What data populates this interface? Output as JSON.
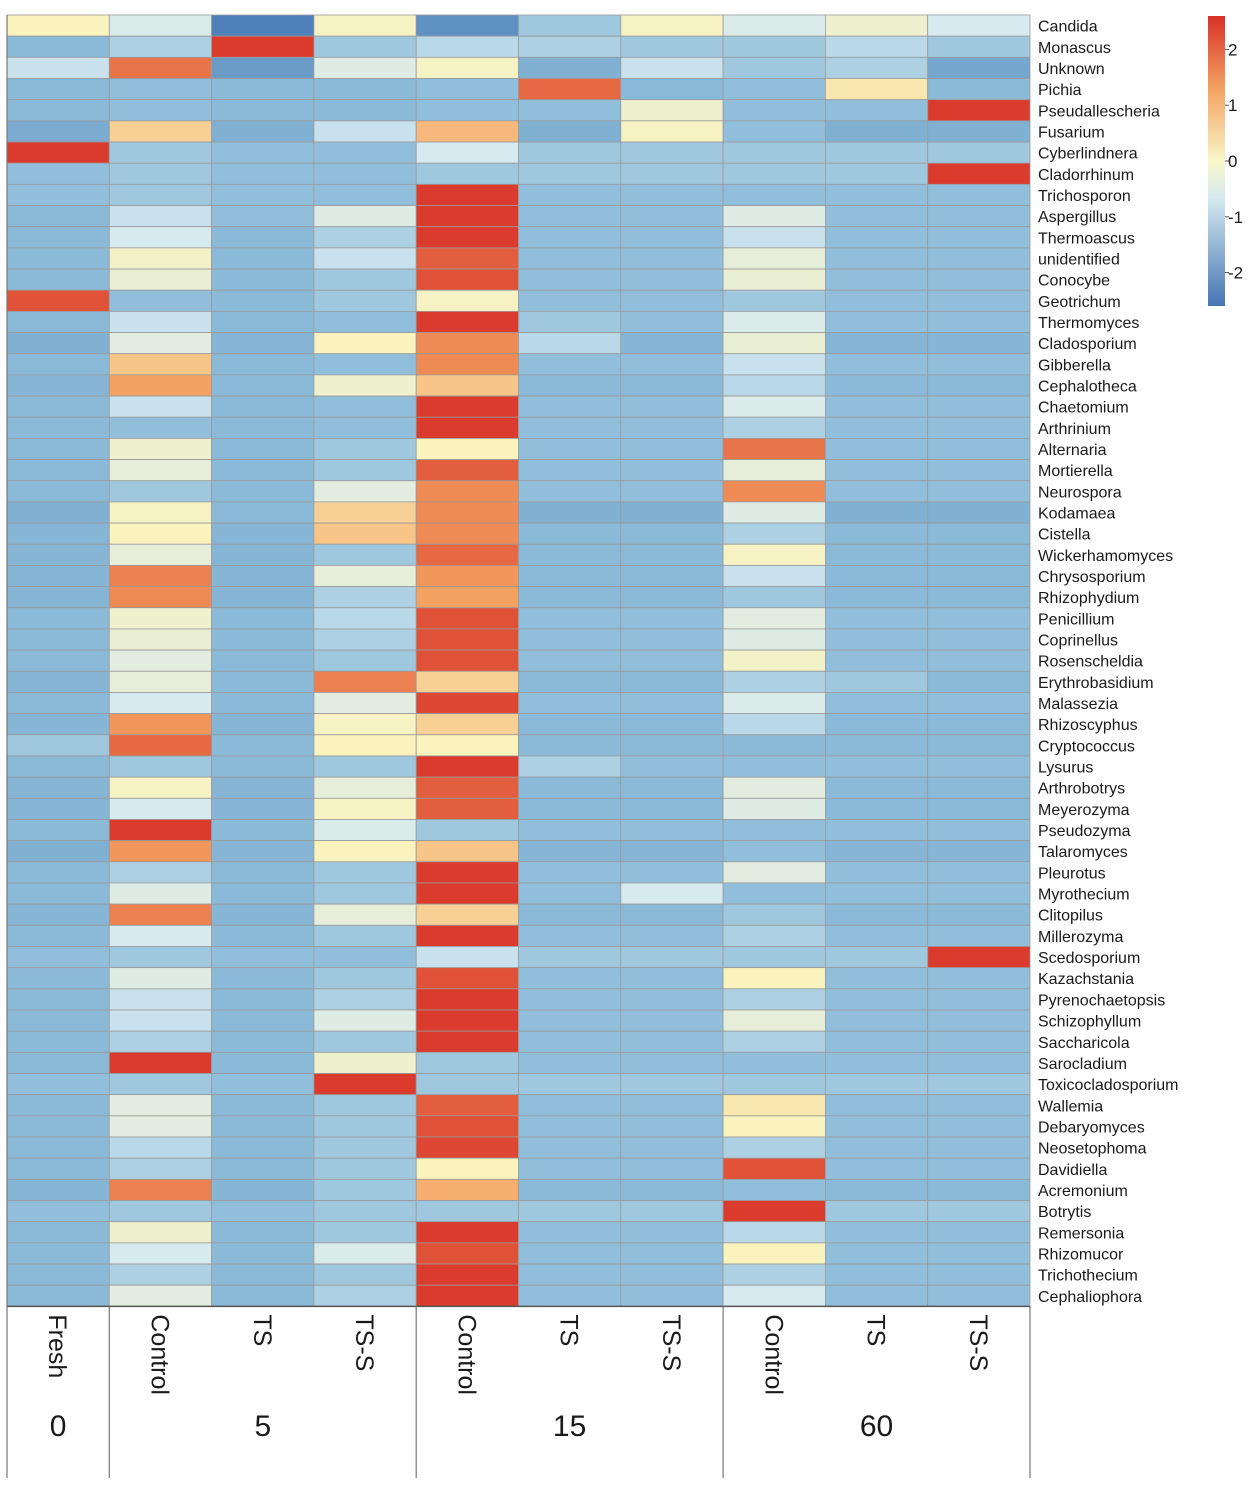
{
  "chart_data": {
    "type": "heatmap",
    "value_scale": {
      "min": -2.6,
      "max": 2.6
    },
    "colorbar": {
      "ticks": [
        2,
        1,
        0,
        -1,
        -2
      ],
      "tick_labels": [
        "2",
        "1",
        "0",
        "-1",
        "-2"
      ]
    },
    "columns": [
      "Fresh",
      "Control",
      "TS",
      "TS-S",
      "Control",
      "TS",
      "TS-S",
      "Control",
      "TS",
      "TS-S"
    ],
    "groups": [
      {
        "label": "0",
        "span": 1
      },
      {
        "label": "5",
        "span": 3
      },
      {
        "label": "15",
        "span": 3
      },
      {
        "label": "60",
        "span": 3
      }
    ],
    "rows": [
      "Candida",
      "Monascus",
      "Unknown",
      "Pichia",
      "Pseudallescheria",
      "Fusarium",
      "Cyberlindnera",
      "Cladorrhinum",
      "Trichosporon",
      "Aspergillus",
      "Thermoascus",
      "unidentified",
      "Conocybe",
      "Geotrichum",
      "Thermomyces",
      "Cladosporium",
      "Gibberella",
      "Cephalotheca",
      "Chaetomium",
      "Arthrinium",
      "Alternaria",
      "Mortierella",
      "Neurospora",
      "Kodamaea",
      "Cistella",
      "Wickerhamomyces",
      "Chrysosporium",
      "Rhizophydium",
      "Penicillium",
      "Coprinellus",
      "Rosenscheldia",
      "Erythrobasidium",
      "Malassezia",
      "Rhizoscyphus",
      "Cryptococcus",
      "Lysurus",
      "Arthrobotrys",
      "Meyerozyma",
      "Pseudozyma",
      "Talaromyces",
      "Pleurotus",
      "Myrothecium",
      "Clitopilus",
      "Millerozyma",
      "Scedosporium",
      "Kazachstania",
      "Pyrenochaetopsis",
      "Schizophyllum",
      "Saccharicola",
      "Sarocladium",
      "Toxicocladosporium",
      "Wallemia",
      "Debaryomyces",
      "Neosetophoma",
      "Davidiella",
      "Acremonium",
      "Botrytis",
      "Remersonia",
      "Rhizomucor",
      "Trichothecium",
      "Cephaliophora"
    ],
    "values": [
      [
        0.9,
        0.1,
        -2.2,
        0.8,
        -1.6,
        -0.4,
        0.8,
        0.1,
        0.6,
        0.0
      ],
      [
        -0.6,
        -0.3,
        2.5,
        -0.4,
        -0.2,
        -0.3,
        -0.4,
        -0.4,
        -0.2,
        -0.4
      ],
      [
        -0.1,
        2.0,
        -1.2,
        0.2,
        0.8,
        -0.8,
        -0.1,
        -0.4,
        -0.3,
        -1.0
      ],
      [
        -0.6,
        -0.5,
        -0.6,
        -0.6,
        -0.5,
        2.1,
        -0.6,
        -0.5,
        1.0,
        -0.6
      ],
      [
        -0.6,
        -0.5,
        -0.6,
        -0.6,
        -0.5,
        -0.5,
        0.6,
        -0.5,
        -0.5,
        2.5
      ],
      [
        -0.9,
        1.2,
        -0.8,
        -0.1,
        1.4,
        -0.8,
        0.8,
        -0.5,
        -0.8,
        -0.8
      ],
      [
        2.5,
        -0.4,
        -0.5,
        -0.5,
        0.0,
        -0.4,
        -0.4,
        -0.4,
        -0.4,
        -0.4
      ],
      [
        -0.5,
        -0.4,
        -0.5,
        -0.5,
        -0.4,
        -0.4,
        -0.4,
        -0.4,
        -0.4,
        2.5
      ],
      [
        -0.5,
        -0.4,
        -0.5,
        -0.5,
        2.5,
        -0.5,
        -0.5,
        -0.5,
        -0.5,
        -0.5
      ],
      [
        -0.6,
        -0.1,
        -0.5,
        0.2,
        2.5,
        -0.5,
        -0.5,
        0.2,
        -0.5,
        -0.5
      ],
      [
        -0.6,
        0.0,
        -0.6,
        -0.3,
        2.5,
        -0.5,
        -0.5,
        -0.1,
        -0.5,
        -0.5
      ],
      [
        -0.6,
        0.7,
        -0.6,
        -0.1,
        2.2,
        -0.5,
        -0.5,
        0.4,
        -0.5,
        -0.5
      ],
      [
        -0.6,
        0.5,
        -0.6,
        -0.4,
        2.3,
        -0.5,
        -0.5,
        0.5,
        -0.5,
        -0.5
      ],
      [
        2.3,
        -0.5,
        -0.6,
        -0.4,
        0.8,
        -0.5,
        -0.5,
        -0.4,
        -0.5,
        -0.5
      ],
      [
        -0.6,
        -0.1,
        -0.6,
        -0.5,
        2.5,
        -0.4,
        -0.5,
        0.1,
        -0.5,
        -0.5
      ],
      [
        -0.8,
        0.3,
        -0.7,
        0.9,
        1.8,
        -0.2,
        -0.7,
        0.5,
        -0.7,
        -0.7
      ],
      [
        -0.6,
        1.3,
        -0.6,
        -0.5,
        1.8,
        -0.5,
        -0.5,
        -0.1,
        -0.5,
        -0.5
      ],
      [
        -0.7,
        1.6,
        -0.6,
        0.6,
        1.3,
        -0.6,
        -0.6,
        -0.2,
        -0.6,
        -0.6
      ],
      [
        -0.6,
        -0.1,
        -0.6,
        -0.5,
        2.5,
        -0.5,
        -0.5,
        0.1,
        -0.5,
        -0.5
      ],
      [
        -0.6,
        -0.5,
        -0.6,
        -0.5,
        2.5,
        -0.5,
        -0.5,
        -0.3,
        -0.5,
        -0.5
      ],
      [
        -0.6,
        0.6,
        -0.6,
        -0.4,
        0.9,
        -0.5,
        -0.5,
        2.0,
        -0.5,
        -0.5
      ],
      [
        -0.6,
        0.4,
        -0.6,
        -0.4,
        2.2,
        -0.5,
        -0.5,
        0.4,
        -0.5,
        -0.5
      ],
      [
        -0.6,
        -0.4,
        -0.6,
        0.3,
        1.8,
        -0.5,
        -0.5,
        1.8,
        -0.5,
        -0.5
      ],
      [
        -0.8,
        0.8,
        -0.6,
        1.2,
        1.8,
        -0.8,
        -0.8,
        0.2,
        -0.8,
        -0.8
      ],
      [
        -0.7,
        0.9,
        -0.7,
        1.3,
        1.8,
        -0.6,
        -0.6,
        -0.3,
        -0.6,
        -0.6
      ],
      [
        -0.7,
        0.4,
        -0.7,
        -0.4,
        2.1,
        -0.6,
        -0.6,
        0.8,
        -0.6,
        -0.6
      ],
      [
        -0.7,
        1.9,
        -0.7,
        0.4,
        1.7,
        -0.6,
        -0.6,
        -0.1,
        -0.6,
        -0.6
      ],
      [
        -0.7,
        1.8,
        -0.7,
        -0.3,
        1.6,
        -0.6,
        -0.6,
        -0.4,
        -0.6,
        -0.6
      ],
      [
        -0.6,
        0.6,
        -0.6,
        -0.2,
        2.3,
        -0.5,
        -0.5,
        0.3,
        -0.5,
        -0.5
      ],
      [
        -0.6,
        0.5,
        -0.6,
        -0.3,
        2.3,
        -0.5,
        -0.5,
        0.2,
        -0.5,
        -0.5
      ],
      [
        -0.6,
        0.3,
        -0.6,
        -0.4,
        2.3,
        -0.5,
        -0.5,
        0.7,
        -0.5,
        -0.5
      ],
      [
        -0.7,
        0.4,
        -0.6,
        1.9,
        1.2,
        -0.6,
        -0.6,
        -0.3,
        -0.4,
        -0.6
      ],
      [
        -0.6,
        0.0,
        -0.6,
        0.3,
        2.4,
        -0.5,
        -0.5,
        0.1,
        -0.5,
        -0.5
      ],
      [
        -0.7,
        1.7,
        -0.7,
        0.8,
        1.2,
        -0.6,
        -0.6,
        -0.2,
        -0.6,
        -0.6
      ],
      [
        -0.4,
        2.1,
        -0.6,
        0.9,
        0.9,
        -0.6,
        -0.6,
        -0.6,
        -0.6,
        -0.6
      ],
      [
        -0.6,
        -0.4,
        -0.6,
        -0.4,
        2.5,
        -0.3,
        -0.5,
        -0.5,
        -0.5,
        -0.5
      ],
      [
        -0.7,
        0.8,
        -0.7,
        0.4,
        2.2,
        -0.6,
        -0.6,
        0.3,
        -0.6,
        -0.6
      ],
      [
        -0.7,
        0.0,
        -0.7,
        0.8,
        2.2,
        -0.6,
        -0.6,
        0.2,
        -0.6,
        -0.6
      ],
      [
        -0.6,
        2.5,
        -0.6,
        0.1,
        -0.4,
        -0.5,
        -0.5,
        -0.5,
        -0.5,
        -0.5
      ],
      [
        -0.8,
        1.7,
        -0.7,
        0.9,
        1.3,
        -0.7,
        -0.7,
        -0.5,
        -0.7,
        -0.7
      ],
      [
        -0.6,
        -0.3,
        -0.6,
        -0.4,
        2.5,
        -0.5,
        -0.5,
        0.3,
        -0.5,
        -0.5
      ],
      [
        -0.6,
        0.2,
        -0.6,
        -0.4,
        2.5,
        -0.5,
        0.0,
        -0.5,
        -0.5,
        -0.5
      ],
      [
        -0.7,
        1.9,
        -0.7,
        0.4,
        1.2,
        -0.6,
        -0.6,
        -0.4,
        -0.6,
        -0.6
      ],
      [
        -0.6,
        0.0,
        -0.6,
        -0.4,
        2.5,
        -0.5,
        -0.5,
        -0.3,
        -0.5,
        -0.5
      ],
      [
        -0.5,
        -0.4,
        -0.5,
        -0.5,
        -0.1,
        -0.4,
        -0.4,
        -0.4,
        -0.4,
        2.5
      ],
      [
        -0.6,
        0.2,
        -0.6,
        -0.4,
        2.3,
        -0.5,
        -0.5,
        0.9,
        -0.5,
        -0.5
      ],
      [
        -0.6,
        -0.1,
        -0.6,
        -0.3,
        2.5,
        -0.5,
        -0.5,
        -0.3,
        -0.5,
        -0.5
      ],
      [
        -0.6,
        -0.1,
        -0.6,
        0.2,
        2.5,
        -0.5,
        -0.5,
        0.4,
        -0.5,
        -0.5
      ],
      [
        -0.6,
        -0.3,
        -0.6,
        -0.4,
        2.5,
        -0.5,
        -0.5,
        -0.3,
        -0.5,
        -0.5
      ],
      [
        -0.6,
        2.5,
        -0.6,
        0.6,
        -0.4,
        -0.5,
        -0.5,
        -0.5,
        -0.5,
        -0.5
      ],
      [
        -0.5,
        -0.4,
        -0.5,
        2.5,
        -0.4,
        -0.4,
        -0.4,
        -0.4,
        -0.4,
        -0.4
      ],
      [
        -0.6,
        0.3,
        -0.6,
        -0.4,
        2.2,
        -0.5,
        -0.5,
        1.0,
        -0.5,
        -0.5
      ],
      [
        -0.6,
        0.3,
        -0.6,
        -0.4,
        2.3,
        -0.5,
        -0.5,
        0.9,
        -0.5,
        -0.5
      ],
      [
        -0.6,
        -0.2,
        -0.6,
        -0.4,
        2.4,
        -0.5,
        -0.5,
        -0.3,
        -0.5,
        -0.5
      ],
      [
        -0.6,
        -0.3,
        -0.6,
        -0.4,
        0.9,
        -0.5,
        -0.5,
        2.3,
        -0.5,
        -0.5
      ],
      [
        -0.7,
        1.9,
        -0.7,
        -0.4,
        1.5,
        -0.6,
        -0.6,
        -0.5,
        -0.6,
        -0.6
      ],
      [
        -0.5,
        -0.4,
        -0.5,
        -0.4,
        -0.4,
        -0.4,
        -0.4,
        2.5,
        -0.4,
        -0.4
      ],
      [
        -0.6,
        0.6,
        -0.6,
        -0.4,
        2.5,
        -0.5,
        -0.5,
        -0.2,
        -0.5,
        -0.5
      ],
      [
        -0.6,
        0.0,
        -0.6,
        0.1,
        2.3,
        -0.5,
        -0.5,
        0.9,
        -0.5,
        -0.5
      ],
      [
        -0.6,
        -0.3,
        -0.6,
        -0.4,
        2.5,
        -0.5,
        -0.5,
        -0.3,
        -0.5,
        -0.5
      ],
      [
        -0.6,
        0.3,
        -0.6,
        -0.3,
        2.5,
        -0.5,
        -0.5,
        0.0,
        -0.5,
        -0.5
      ]
    ]
  }
}
